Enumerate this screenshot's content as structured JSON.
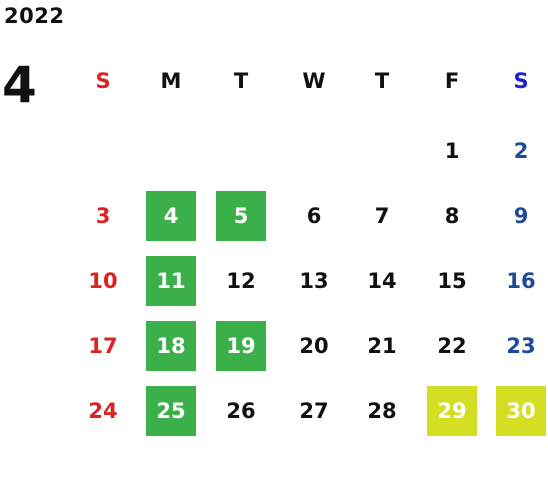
{
  "calendar": {
    "year": "2022",
    "month": "4",
    "weekdays": [
      "S",
      "M",
      "T",
      "W",
      "T",
      "F",
      "S"
    ],
    "colors": {
      "default": "#111111",
      "sunday": "#dd2222",
      "saturday": "#1f4a9a",
      "saturday_header": "#1e22cc",
      "highlight_green": "#3aaf4a",
      "highlight_yellow": "#d4de22",
      "highlight_text": "#ffffff"
    },
    "weeks": [
      [
        null,
        null,
        null,
        null,
        null,
        {
          "d": "1"
        },
        {
          "d": "2"
        }
      ],
      [
        {
          "d": "3"
        },
        {
          "d": "4",
          "h": "green"
        },
        {
          "d": "5",
          "h": "green"
        },
        {
          "d": "6"
        },
        {
          "d": "7"
        },
        {
          "d": "8"
        },
        {
          "d": "9"
        }
      ],
      [
        {
          "d": "10"
        },
        {
          "d": "11",
          "h": "green"
        },
        {
          "d": "12"
        },
        {
          "d": "13"
        },
        {
          "d": "14"
        },
        {
          "d": "15"
        },
        {
          "d": "16"
        }
      ],
      [
        {
          "d": "17"
        },
        {
          "d": "18",
          "h": "green"
        },
        {
          "d": "19",
          "h": "green"
        },
        {
          "d": "20"
        },
        {
          "d": "21"
        },
        {
          "d": "22"
        },
        {
          "d": "23"
        }
      ],
      [
        {
          "d": "24"
        },
        {
          "d": "25",
          "h": "green"
        },
        {
          "d": "26"
        },
        {
          "d": "27"
        },
        {
          "d": "28"
        },
        {
          "d": "29",
          "h": "yellow"
        },
        {
          "d": "30",
          "h": "yellow"
        }
      ]
    ]
  }
}
